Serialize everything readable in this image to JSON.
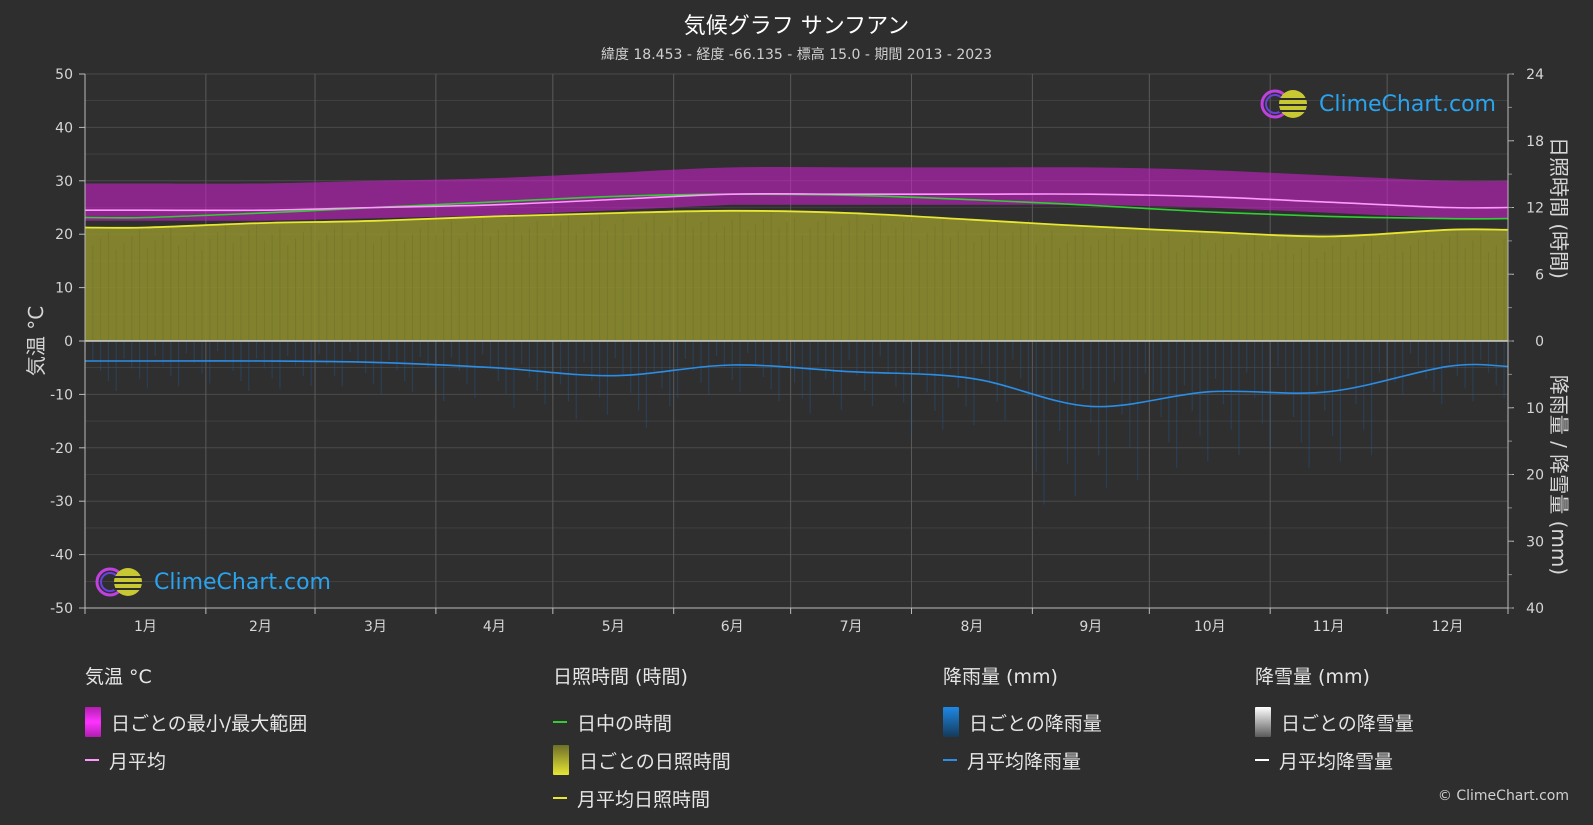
{
  "title": "気候グラフ サンフアン",
  "subtitle": "緯度 18.453 - 経度 -66.135 - 標高 15.0 - 期間 2013 - 2023",
  "logo_text": "ClimeChart.com",
  "copyright": "© ClimeChart.com",
  "colors": {
    "background": "#2e2e2e",
    "temp_range": "#d61fd6",
    "temp_avg": "#ff99ff",
    "daylight": "#33cc33",
    "sunshine_fill": "#a8a832",
    "sunshine_avg": "#e6e633",
    "rain": "#1f6fbf",
    "rain_avg": "#2b8ee6",
    "snow_avg": "#ffffff"
  },
  "legend": {
    "temperature": {
      "heading": "気温 °C",
      "range_label": "日ごとの最小/最大範囲",
      "avg_label": "月平均"
    },
    "sunshine": {
      "heading": "日照時間 (時間)",
      "daylight_label": "日中の時間",
      "daily_label": "日ごとの日照時間",
      "avg_label": "月平均日照時間"
    },
    "rain": {
      "heading": "降雨量 (mm)",
      "daily_label": "日ごとの降雨量",
      "avg_label": "月平均降雨量"
    },
    "snow": {
      "heading": "降雪量 (mm)",
      "daily_label": "日ごとの降雪量",
      "avg_label": "月平均降雪量"
    }
  },
  "chart_data": {
    "type": "line",
    "categories": [
      "1月",
      "2月",
      "3月",
      "4月",
      "5月",
      "6月",
      "7月",
      "8月",
      "9月",
      "10月",
      "11月",
      "12月"
    ],
    "left_axis": {
      "label": "気温 °C",
      "range": [
        -50,
        50
      ],
      "ticks": [
        "50",
        "40",
        "30",
        "20",
        "10",
        "0",
        "-10",
        "-20",
        "-30",
        "-40",
        "-50"
      ]
    },
    "right_axis_top": {
      "label": "日照時間 (時間)",
      "range": [
        0,
        24
      ],
      "ticks": [
        "24",
        "18",
        "12",
        "6",
        "0"
      ]
    },
    "right_axis_bottom": {
      "label": "降雨量 / 降雪量 (mm)",
      "range": [
        0,
        40
      ],
      "ticks": [
        "10",
        "20",
        "30",
        "40"
      ]
    },
    "grid": true,
    "series": [
      {
        "name": "日ごとの最小/最大範囲",
        "axis": "temperature",
        "type": "band",
        "min": [
          22.5,
          22.5,
          23,
          23.5,
          24.5,
          25.5,
          25.5,
          25.5,
          25.5,
          25,
          24,
          23
        ],
        "max": [
          29.5,
          29.5,
          30,
          30.5,
          31.5,
          32.5,
          32.5,
          32.5,
          32.5,
          32,
          31,
          30
        ]
      },
      {
        "name": "月平均",
        "axis": "temperature",
        "values": [
          24.5,
          24.5,
          25,
          25.5,
          26.5,
          27.5,
          27.5,
          27.5,
          27.5,
          27,
          26,
          25
        ]
      },
      {
        "name": "日中の時間",
        "axis": "sunshine",
        "values": [
          11.1,
          11.5,
          12,
          12.5,
          13,
          13.2,
          13.1,
          12.7,
          12.2,
          11.6,
          11.2,
          11
        ]
      },
      {
        "name": "月平均日照時間",
        "axis": "sunshine",
        "values": [
          10.2,
          10.6,
          10.8,
          11.2,
          11.5,
          11.7,
          11.5,
          10.9,
          10.3,
          9.8,
          9.4,
          10
        ]
      },
      {
        "name": "月平均降雨量",
        "axis": "rain",
        "values": [
          3,
          3,
          3.2,
          4,
          5.2,
          3.6,
          4.6,
          5.6,
          9.8,
          7.6,
          7.6,
          3.8
        ]
      },
      {
        "name": "月平均降雪量",
        "axis": "snow",
        "values": [
          0,
          0,
          0,
          0,
          0,
          0,
          0,
          0,
          0,
          0,
          0,
          0
        ]
      }
    ]
  }
}
